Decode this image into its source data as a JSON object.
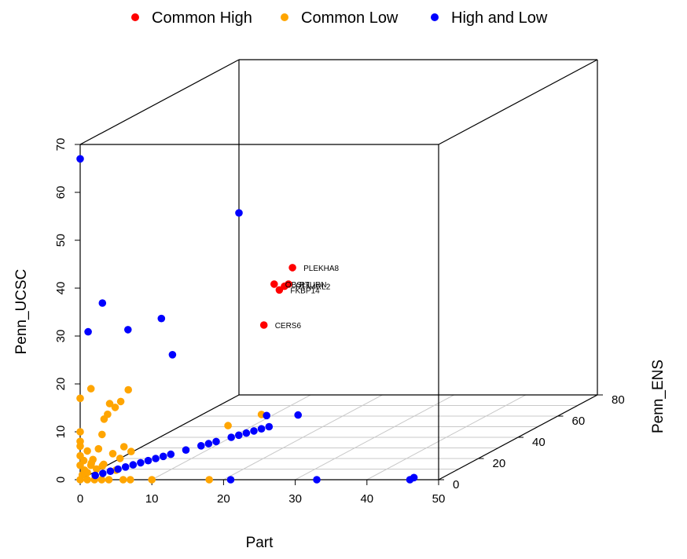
{
  "chart_data": {
    "type": "scatter3d",
    "xlabel": "Part",
    "ylabel": "Penn_ENS",
    "zlabel": "Penn_UCSC",
    "xlim": [
      0,
      50
    ],
    "ylim": [
      0,
      80
    ],
    "zlim": [
      0,
      70
    ],
    "x_ticks": [
      "0",
      "10",
      "20",
      "30",
      "40",
      "50"
    ],
    "y_ticks": [
      "0",
      "20",
      "40",
      "60",
      "80"
    ],
    "z_ticks": [
      "0",
      "10",
      "20",
      "30",
      "40",
      "50",
      "60",
      "70"
    ],
    "legend_position": "top",
    "grid": true,
    "legend": [
      {
        "name": "Common High",
        "color": "#ff0000"
      },
      {
        "name": "Common Low",
        "color": "#ffa500"
      },
      {
        "name": "High and Low",
        "color": "#0000ff"
      }
    ],
    "series": [
      {
        "name": "Common High",
        "color": "#ff0000",
        "points": [
          {
            "x": 13,
            "y": 60,
            "z": 31,
            "label": "PLEKHA8"
          },
          {
            "x": 11,
            "y": 58,
            "z": 28,
            "label": "OBSL1"
          },
          {
            "x": 13,
            "y": 56,
            "z": 28,
            "label": "RTN4RL2"
          },
          {
            "x": 13,
            "y": 58,
            "z": 28,
            "label": "PTURN"
          },
          {
            "x": 12,
            "y": 57,
            "z": 27,
            "label": "FKBP14"
          },
          {
            "x": 14,
            "y": 42,
            "z": 23,
            "label": "CERS6"
          }
        ]
      },
      {
        "name": "Common Low",
        "color": "#ffa500",
        "points": [
          {
            "x": 0,
            "y": 0,
            "z": 0
          },
          {
            "x": 0.3,
            "y": 0,
            "z": 1
          },
          {
            "x": 0.6,
            "y": 0,
            "z": 2
          },
          {
            "x": 0,
            "y": 0,
            "z": 3
          },
          {
            "x": 0.5,
            "y": 0,
            "z": 4
          },
          {
            "x": 0,
            "y": 0,
            "z": 5
          },
          {
            "x": 1,
            "y": 0,
            "z": 6
          },
          {
            "x": 0,
            "y": 0,
            "z": 7
          },
          {
            "x": 0,
            "y": 0,
            "z": 8
          },
          {
            "x": 0,
            "y": 0,
            "z": 10
          },
          {
            "x": 0,
            "y": 0,
            "z": 17
          },
          {
            "x": 1,
            "y": 0,
            "z": 0
          },
          {
            "x": 1,
            "y": 0,
            "z": 1.5
          },
          {
            "x": 1.5,
            "y": 0,
            "z": 3
          },
          {
            "x": 1.5,
            "y": 1,
            "z": 4
          },
          {
            "x": 2,
            "y": 0,
            "z": 0
          },
          {
            "x": 2,
            "y": 1,
            "z": 2
          },
          {
            "x": 2,
            "y": 2,
            "z": 6
          },
          {
            "x": 2.5,
            "y": 2,
            "z": 9
          },
          {
            "x": 2.5,
            "y": 3,
            "z": 12
          },
          {
            "x": 3,
            "y": 3,
            "z": 13
          },
          {
            "x": 3,
            "y": 4,
            "z": 15
          },
          {
            "x": 3.5,
            "y": 5,
            "z": 14
          },
          {
            "x": 3,
            "y": 0,
            "z": 0
          },
          {
            "x": 3,
            "y": 1,
            "z": 3
          },
          {
            "x": 4,
            "y": 0,
            "z": 0
          },
          {
            "x": 4,
            "y": 2,
            "z": 5
          },
          {
            "x": 4,
            "y": 6,
            "z": 15
          },
          {
            "x": 4.5,
            "y": 8,
            "z": 17
          },
          {
            "x": 5,
            "y": 0,
            "z": 2
          },
          {
            "x": 5,
            "y": 2,
            "z": 4
          },
          {
            "x": 5,
            "y": 4,
            "z": 6
          },
          {
            "x": 6,
            "y": 0,
            "z": 0
          },
          {
            "x": 6,
            "y": 4,
            "z": 5
          },
          {
            "x": 1.5,
            "y": 0,
            "z": 19
          },
          {
            "x": 7,
            "y": 0,
            "z": 0
          },
          {
            "x": 10,
            "y": 0,
            "z": 0
          },
          {
            "x": 18,
            "y": 0,
            "z": 0
          },
          {
            "x": 9,
            "y": 42,
            "z": 2
          },
          {
            "x": 12,
            "y": 48,
            "z": 3
          },
          {
            "x": 2,
            "y": 4,
            "z": 2
          },
          {
            "x": 1,
            "y": 2,
            "z": 3
          }
        ]
      },
      {
        "name": "High and Low",
        "color": "#0000ff",
        "points": [
          {
            "x": 0,
            "y": 0,
            "z": 67
          },
          {
            "x": 0,
            "y": 80,
            "z": 38
          },
          {
            "x": 0,
            "y": 4,
            "z": 30
          },
          {
            "x": 2,
            "y": 4,
            "z": 36
          },
          {
            "x": 5,
            "y": 6,
            "z": 30
          },
          {
            "x": 8,
            "y": 12,
            "z": 31
          },
          {
            "x": 9,
            "y": 14,
            "z": 23
          },
          {
            "x": 21,
            "y": 0,
            "z": 0
          },
          {
            "x": 33,
            "y": 0,
            "z": 0
          },
          {
            "x": 46,
            "y": 0,
            "z": 0
          },
          {
            "x": 46,
            "y": 2,
            "z": 0
          },
          {
            "x": 13,
            "y": 47,
            "z": 3
          },
          {
            "x": 16,
            "y": 52,
            "z": 2
          },
          {
            "x": 1,
            "y": 4,
            "z": 0
          },
          {
            "x": 1.5,
            "y": 6,
            "z": 0
          },
          {
            "x": 2,
            "y": 8,
            "z": 0
          },
          {
            "x": 2.5,
            "y": 10,
            "z": 0
          },
          {
            "x": 3,
            "y": 12,
            "z": 0
          },
          {
            "x": 3.5,
            "y": 14,
            "z": 0
          },
          {
            "x": 4,
            "y": 16,
            "z": 0
          },
          {
            "x": 4.5,
            "y": 18,
            "z": 0
          },
          {
            "x": 5,
            "y": 20,
            "z": 0
          },
          {
            "x": 5.5,
            "y": 22,
            "z": 0
          },
          {
            "x": 6,
            "y": 24,
            "z": 0
          },
          {
            "x": 7,
            "y": 28,
            "z": 0
          },
          {
            "x": 8,
            "y": 32,
            "z": 0
          },
          {
            "x": 8.5,
            "y": 34,
            "z": 0
          },
          {
            "x": 9,
            "y": 36,
            "z": 0
          },
          {
            "x": 10,
            "y": 40,
            "z": 0
          },
          {
            "x": 10.5,
            "y": 42,
            "z": 0
          },
          {
            "x": 11,
            "y": 44,
            "z": 0
          },
          {
            "x": 11.5,
            "y": 46,
            "z": 0
          },
          {
            "x": 12,
            "y": 48,
            "z": 0
          },
          {
            "x": 12.5,
            "y": 50,
            "z": 0
          }
        ]
      }
    ]
  }
}
